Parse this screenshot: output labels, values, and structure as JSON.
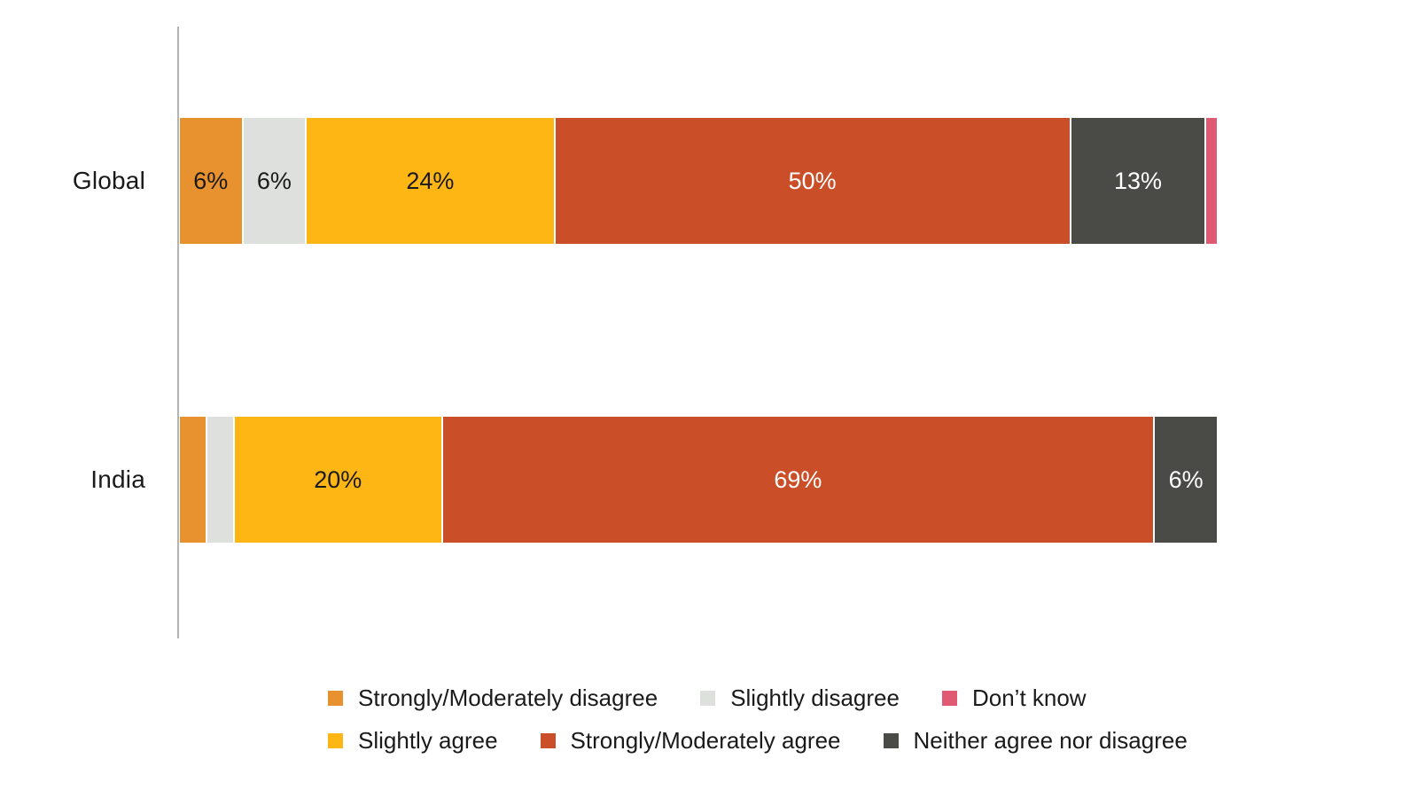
{
  "chart_data": {
    "type": "bar",
    "orientation": "horizontal",
    "stacked": true,
    "title": "",
    "xlabel": "",
    "ylabel": "",
    "xlim": [
      0,
      100
    ],
    "grid": false,
    "legend_position": "bottom",
    "axis_line_color": "#b3b3b3",
    "categories": [
      "Global",
      "India"
    ],
    "series": [
      {
        "name": "Strongly/Moderately disagree",
        "color": "#e8922f",
        "label_color": "#1a1a1a",
        "values": [
          6,
          2.5
        ],
        "labels": [
          "6%",
          ""
        ]
      },
      {
        "name": "Slightly disagree",
        "color": "#dee0dd",
        "label_color": "#1a1a1a",
        "values": [
          6,
          2.5
        ],
        "labels": [
          "6%",
          ""
        ]
      },
      {
        "name": "Slightly agree",
        "color": "#fdb614",
        "label_color": "#1a1a1a",
        "values": [
          24,
          20
        ],
        "labels": [
          "24%",
          "20%"
        ]
      },
      {
        "name": "Strongly/Moderately agree",
        "color": "#ca4e27",
        "label_color": "#ffffff",
        "values": [
          50,
          69
        ],
        "labels": [
          "50%",
          "69%"
        ]
      },
      {
        "name": "Neither agree nor disagree",
        "color": "#4a4a47",
        "label_color": "#ffffff",
        "values": [
          13,
          6
        ],
        "labels": [
          "13%",
          "6%"
        ]
      },
      {
        "name": "Don’t know",
        "color": "#e05a73",
        "label_color": "#ffffff",
        "values": [
          1,
          0
        ],
        "labels": [
          "",
          ""
        ]
      }
    ],
    "legend_rows": [
      [
        "Strongly/Moderately disagree",
        "Slightly disagree",
        "Don’t know"
      ],
      [
        "Slightly agree",
        "Strongly/Moderately agree",
        "Neither agree nor disagree"
      ]
    ]
  }
}
